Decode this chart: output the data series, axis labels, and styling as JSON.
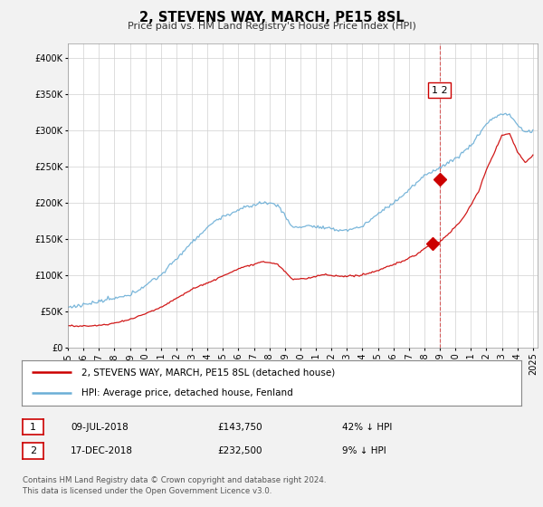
{
  "title": "2, STEVENS WAY, MARCH, PE15 8SL",
  "subtitle": "Price paid vs. HM Land Registry's House Price Index (HPI)",
  "legend_line1": "2, STEVENS WAY, MARCH, PE15 8SL (detached house)",
  "legend_line2": "HPI: Average price, detached house, Fenland",
  "table_rows": [
    {
      "num": "1",
      "date": "09-JUL-2018",
      "price": "£143,750",
      "hpi": "42% ↓ HPI"
    },
    {
      "num": "2",
      "date": "17-DEC-2018",
      "price": "£232,500",
      "hpi": "9% ↓ HPI"
    }
  ],
  "footnote": "Contains HM Land Registry data © Crown copyright and database right 2024.\nThis data is licensed under the Open Government Licence v3.0.",
  "hpi_color": "#6baed6",
  "price_color": "#cc0000",
  "dashed_color": "#cc0000",
  "marker1_date": 2018.52,
  "marker2_date": 2018.97,
  "marker1_price": 143750,
  "marker2_price": 232500,
  "vline_date": 2018.97,
  "ylim_max": 420000,
  "background_color": "#f2f2f2",
  "plot_bg_color": "#ffffff"
}
